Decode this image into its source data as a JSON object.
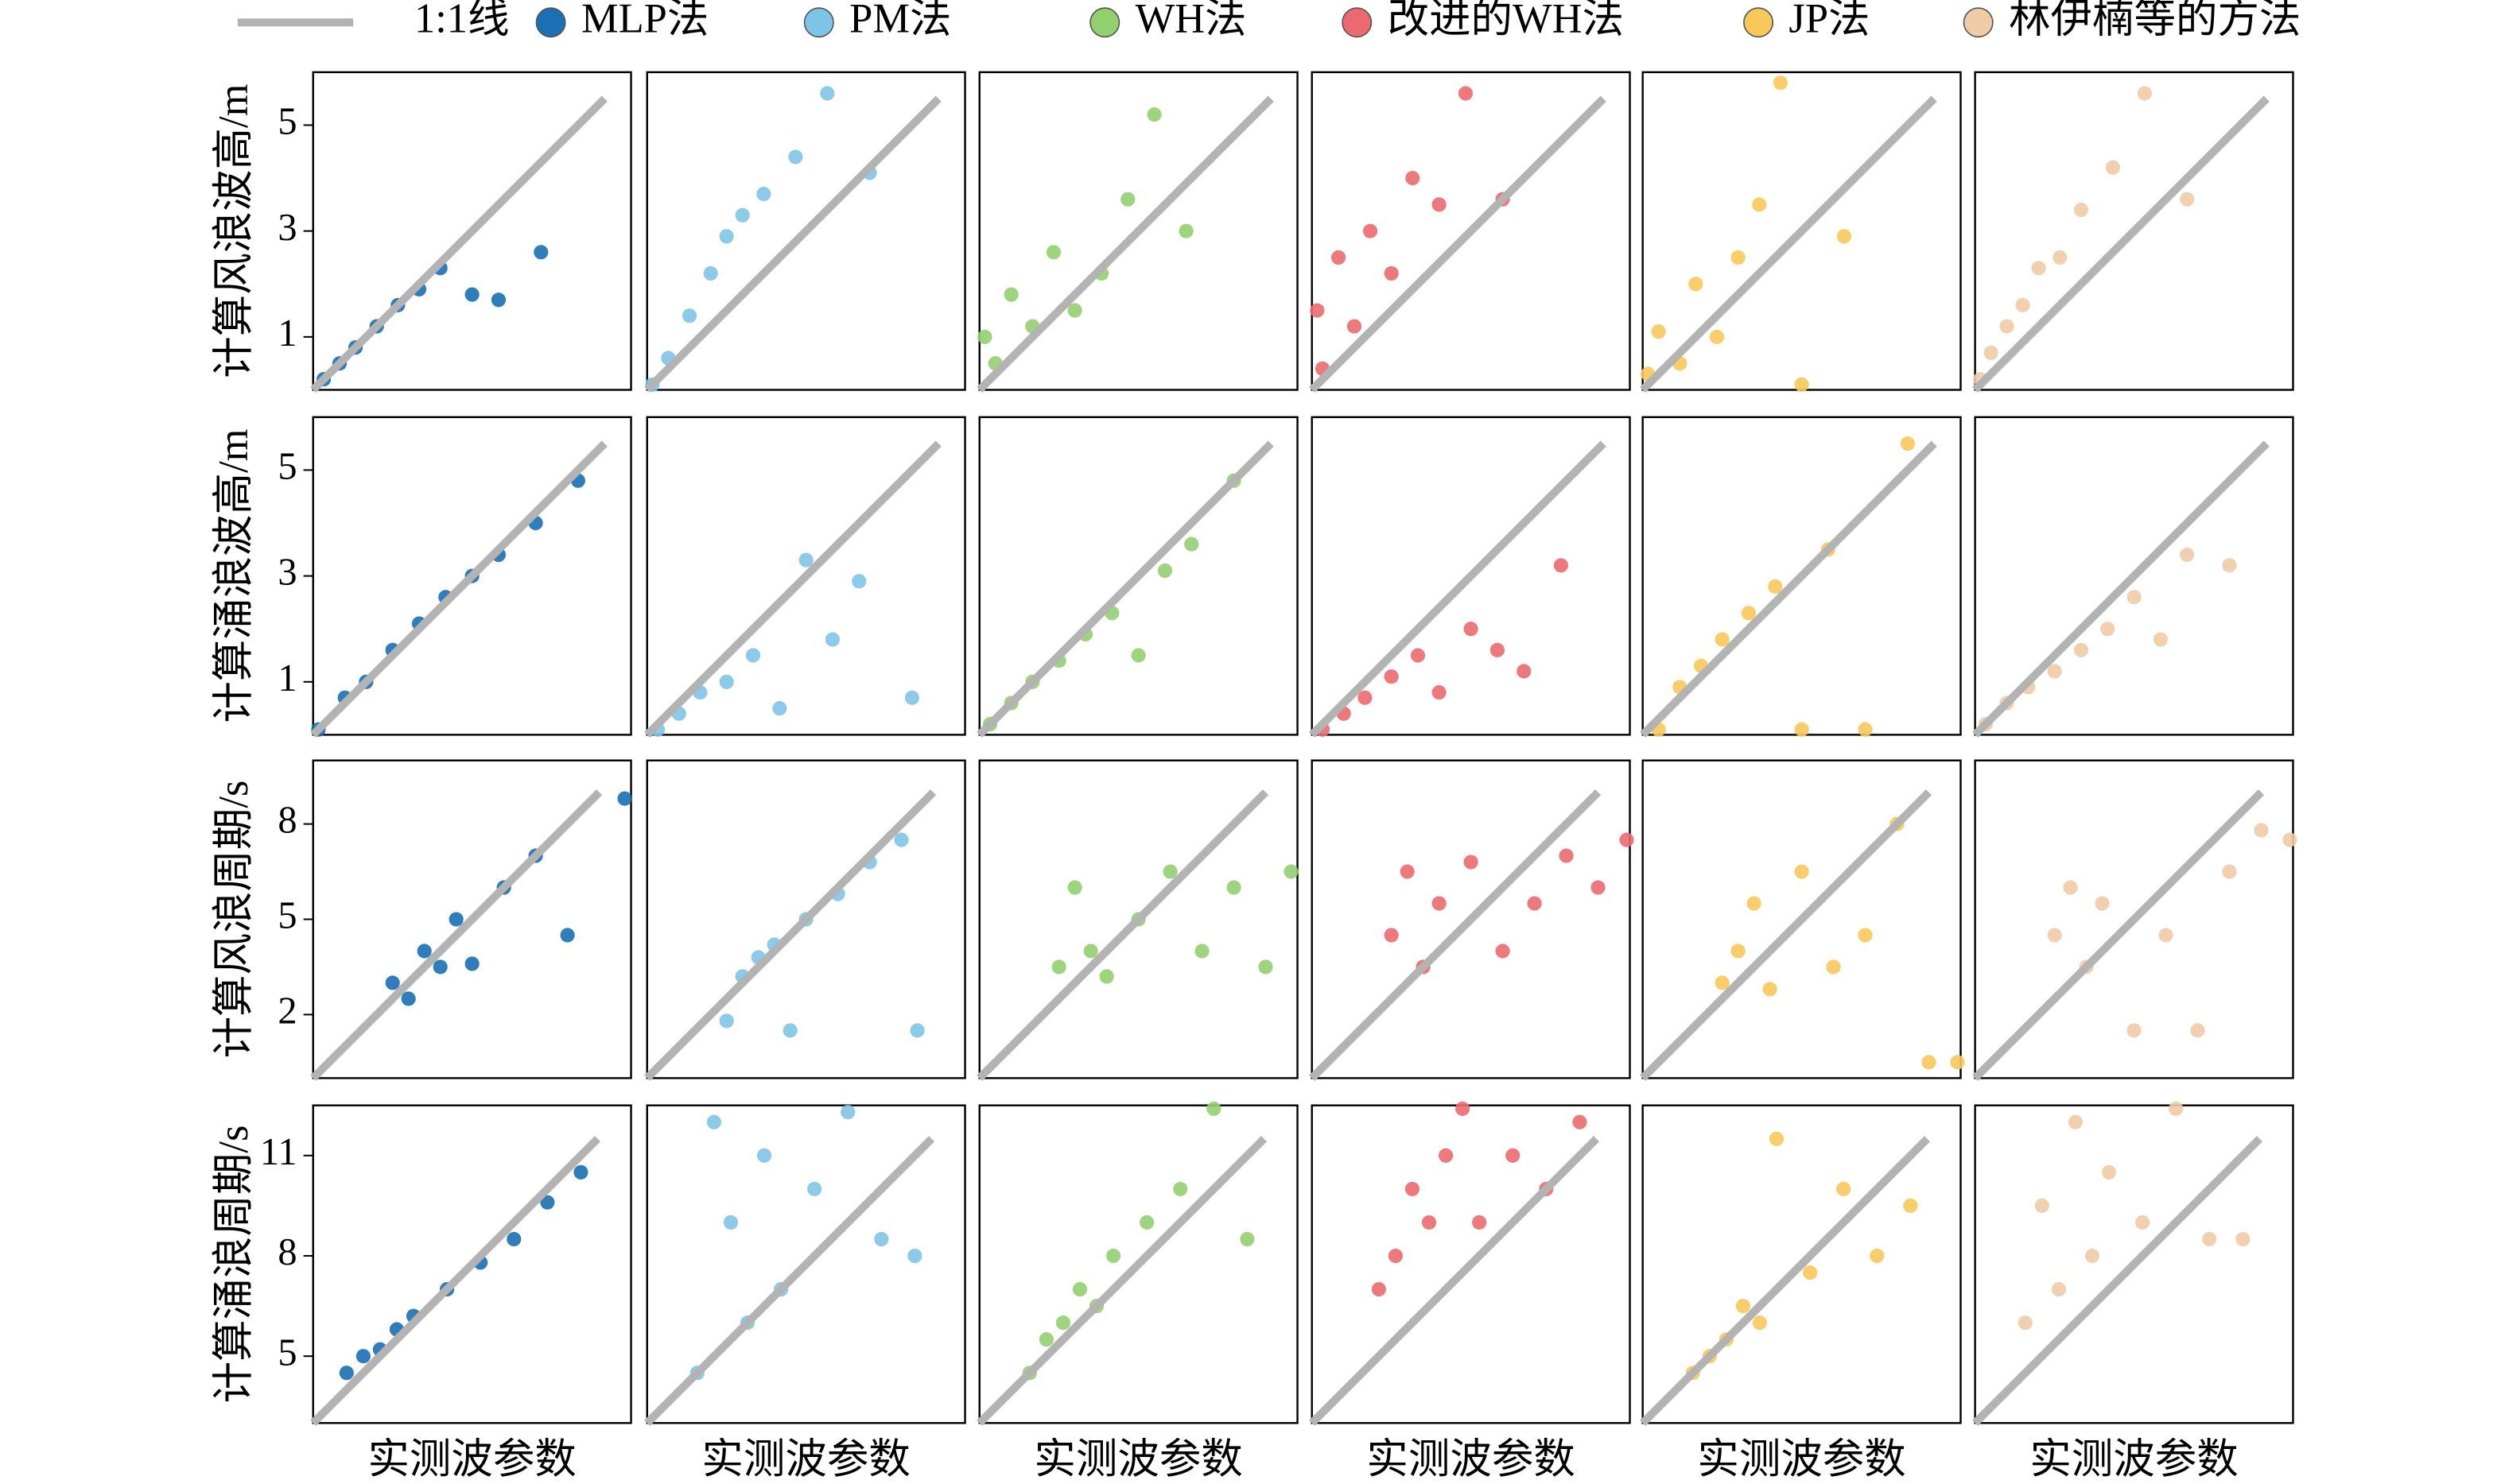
{
  "chart_data": [
    {
      "type": "scatter",
      "ylabel": "计算风浪波高/m",
      "xlim": [
        0,
        6
      ],
      "ylim": [
        0,
        6
      ],
      "yticks": [
        1,
        3,
        5
      ],
      "reference_line": {
        "name": "1:1线",
        "color": "#b3b3b3",
        "range": [
          0,
          5.5
        ]
      },
      "series": [
        {
          "name": "MLP法",
          "color": "#1a6fb5",
          "x": [
            0.2,
            0.5,
            0.8,
            1.2,
            1.6,
            2.0,
            2.4,
            3.0,
            3.5,
            4.3
          ],
          "y": [
            0.2,
            0.5,
            0.8,
            1.2,
            1.6,
            1.9,
            2.3,
            1.8,
            1.7,
            2.6
          ]
        },
        {
          "name": "PM法",
          "color": "#7ec4e6",
          "x": [
            0.1,
            0.4,
            0.8,
            1.2,
            1.5,
            1.8,
            2.2,
            2.8,
            3.4,
            4.2
          ],
          "y": [
            0.1,
            0.6,
            1.4,
            2.2,
            2.9,
            3.3,
            3.7,
            4.4,
            5.6,
            4.1
          ]
        },
        {
          "name": "WH法",
          "color": "#92cf6f",
          "x": [
            0.1,
            0.3,
            0.6,
            1.0,
            1.4,
            1.8,
            2.3,
            2.8,
            3.3,
            3.9
          ],
          "y": [
            1.0,
            0.5,
            1.8,
            1.2,
            2.6,
            1.5,
            2.2,
            3.6,
            5.2,
            3.0
          ]
        },
        {
          "name": "改进的WH法",
          "color": "#ec6a6f",
          "x": [
            0.1,
            0.2,
            0.5,
            0.8,
            1.1,
            1.5,
            1.9,
            2.4,
            2.9,
            3.6
          ],
          "y": [
            1.5,
            0.4,
            2.5,
            1.2,
            3.0,
            2.2,
            4.0,
            3.5,
            5.6,
            3.6
          ]
        },
        {
          "name": "JP法",
          "color": "#f7c85a",
          "x": [
            0.1,
            0.3,
            0.7,
            1.0,
            1.4,
            1.8,
            2.2,
            2.6,
            3.0,
            3.8
          ],
          "y": [
            0.3,
            1.1,
            0.5,
            2.0,
            1.0,
            2.5,
            3.5,
            5.8,
            0.1,
            2.9
          ]
        },
        {
          "name": "林伊楠等的方法",
          "color": "#efcba6",
          "x": [
            0.1,
            0.3,
            0.6,
            0.9,
            1.2,
            1.6,
            2.0,
            2.6,
            3.2,
            4.0
          ],
          "y": [
            0.2,
            0.7,
            1.2,
            1.6,
            2.3,
            2.5,
            3.4,
            4.2,
            5.6,
            3.6
          ]
        }
      ]
    },
    {
      "type": "scatter",
      "ylabel": "计算涌浪波高/m",
      "xlim": [
        0,
        6
      ],
      "ylim": [
        0,
        6
      ],
      "yticks": [
        1,
        3,
        5
      ],
      "reference_line": {
        "color": "#b3b3b3",
        "range": [
          0,
          5.5
        ]
      },
      "series": [
        {
          "color": "#1a6fb5",
          "x": [
            0.1,
            0.6,
            1.0,
            1.5,
            2.0,
            2.5,
            3.0,
            3.5,
            4.2,
            5.0
          ],
          "y": [
            0.1,
            0.7,
            1.0,
            1.6,
            2.1,
            2.6,
            3.0,
            3.4,
            4.0,
            4.8
          ]
        },
        {
          "color": "#7ec4e6",
          "x": [
            0.2,
            0.6,
            1.0,
            1.5,
            2.0,
            2.5,
            3.0,
            3.5,
            4.0,
            5.0
          ],
          "y": [
            0.1,
            0.4,
            0.8,
            1.0,
            1.5,
            0.5,
            3.3,
            1.8,
            2.9,
            0.7
          ]
        },
        {
          "color": "#92cf6f",
          "x": [
            0.2,
            0.6,
            1.0,
            1.5,
            2.0,
            2.5,
            3.0,
            3.5,
            4.0,
            4.8
          ],
          "y": [
            0.2,
            0.6,
            1.0,
            1.4,
            1.9,
            2.3,
            1.5,
            3.1,
            3.6,
            4.8
          ]
        },
        {
          "color": "#ec6a6f",
          "x": [
            0.2,
            0.6,
            1.0,
            1.5,
            2.0,
            2.4,
            3.0,
            3.5,
            4.0,
            4.7
          ],
          "y": [
            0.1,
            0.4,
            0.7,
            1.1,
            1.5,
            0.8,
            2.0,
            1.6,
            1.2,
            3.2
          ]
        },
        {
          "color": "#f7c85a",
          "x": [
            0.3,
            0.7,
            1.1,
            1.5,
            2.0,
            2.5,
            3.0,
            3.5,
            4.2,
            5.0
          ],
          "y": [
            0.1,
            0.9,
            1.3,
            1.8,
            2.3,
            2.8,
            0.1,
            3.5,
            0.1,
            5.5
          ]
        },
        {
          "color": "#efcba6",
          "x": [
            0.2,
            0.6,
            1.0,
            1.5,
            2.0,
            2.5,
            3.0,
            3.5,
            4.0,
            4.8
          ],
          "y": [
            0.2,
            0.6,
            0.9,
            1.2,
            1.6,
            2.0,
            2.6,
            1.8,
            3.4,
            3.2
          ]
        }
      ]
    },
    {
      "type": "scatter",
      "ylabel": "计算风浪周期/s",
      "xlim": [
        0,
        10
      ],
      "ylim": [
        0,
        10
      ],
      "yticks": [
        2,
        5,
        8
      ],
      "reference_line": {
        "color": "#b3b3b3",
        "range": [
          0,
          9
        ]
      },
      "series": [
        {
          "color": "#1a6fb5",
          "x": [
            2.5,
            3.0,
            3.5,
            4.0,
            4.5,
            5.0,
            6.0,
            7.0,
            8.0,
            9.8
          ],
          "y": [
            3.0,
            2.5,
            4.0,
            3.5,
            5.0,
            3.6,
            6.0,
            7.0,
            4.5,
            8.8
          ]
        },
        {
          "color": "#7ec4e6",
          "x": [
            2.5,
            3.0,
            3.5,
            4.0,
            5.0,
            6.0,
            7.0,
            8.0,
            4.5,
            8.5
          ],
          "y": [
            1.8,
            3.2,
            3.8,
            4.2,
            5.0,
            5.8,
            6.8,
            7.5,
            1.5,
            1.5
          ]
        },
        {
          "color": "#92cf6f",
          "x": [
            2.5,
            3.0,
            3.5,
            4.0,
            5.0,
            6.0,
            7.0,
            8.0,
            9.0,
            9.8
          ],
          "y": [
            3.5,
            6.0,
            4.0,
            3.2,
            5.0,
            6.5,
            4.0,
            6.0,
            3.5,
            6.5
          ]
        },
        {
          "color": "#ec6a6f",
          "x": [
            2.5,
            3.0,
            3.5,
            4.0,
            5.0,
            6.0,
            7.0,
            8.0,
            9.0,
            9.9
          ],
          "y": [
            4.5,
            6.5,
            3.5,
            5.5,
            6.8,
            4.0,
            5.5,
            7.0,
            6.0,
            7.5
          ]
        },
        {
          "color": "#f7c85a",
          "x": [
            2.5,
            3.0,
            3.5,
            4.0,
            5.0,
            6.0,
            7.0,
            8.0,
            9.0,
            9.9
          ],
          "y": [
            3.0,
            4.0,
            5.5,
            2.8,
            6.5,
            3.5,
            4.5,
            8.0,
            0.5,
            0.5
          ]
        },
        {
          "color": "#efcba6",
          "x": [
            2.5,
            3.0,
            3.5,
            4.0,
            5.0,
            6.0,
            7.0,
            8.0,
            9.0,
            9.9
          ],
          "y": [
            4.5,
            6.0,
            3.5,
            5.5,
            1.5,
            4.5,
            1.5,
            6.5,
            7.8,
            7.5
          ]
        }
      ]
    },
    {
      "type": "scatter",
      "ylabel": "计算涌浪周期/s",
      "xlabel": "实测波参数",
      "xlim": [
        3,
        12.5
      ],
      "ylim": [
        3,
        12.5
      ],
      "yticks": [
        5,
        8,
        11
      ],
      "reference_line": {
        "color": "#b3b3b3",
        "range": [
          3,
          11.5
        ]
      },
      "series": [
        {
          "color": "#1a6fb5",
          "x": [
            4,
            4.5,
            5,
            5.5,
            6,
            7,
            8,
            9,
            10,
            11
          ],
          "y": [
            4.5,
            5,
            5.2,
            5.8,
            6.2,
            7,
            7.8,
            8.5,
            9.6,
            10.5
          ]
        },
        {
          "color": "#7ec4e6",
          "x": [
            4.5,
            5,
            5.5,
            6,
            6.5,
            7,
            8,
            9,
            10,
            11
          ],
          "y": [
            4.5,
            12,
            9,
            6,
            11,
            7,
            10,
            12.3,
            8.5,
            8
          ]
        },
        {
          "color": "#92cf6f",
          "x": [
            4.5,
            5,
            5.5,
            6,
            6.5,
            7,
            8,
            9,
            10,
            11
          ],
          "y": [
            4.5,
            5.5,
            6,
            7,
            6.5,
            8,
            9,
            10,
            12.4,
            8.5
          ]
        },
        {
          "color": "#ec6a6f",
          "x": [
            5,
            5.5,
            6,
            6.5,
            7,
            7.5,
            8,
            9,
            10,
            11
          ],
          "y": [
            7,
            8,
            10,
            9,
            11,
            12.4,
            9,
            11,
            10,
            12
          ]
        },
        {
          "color": "#f7c85a",
          "x": [
            4.5,
            5,
            5.5,
            6,
            6.5,
            7,
            8,
            9,
            10,
            11
          ],
          "y": [
            4.5,
            5,
            5.5,
            6.5,
            6,
            11.5,
            7.5,
            10,
            8,
            9.5
          ]
        },
        {
          "color": "#efcba6",
          "x": [
            4.5,
            5,
            5.5,
            6,
            6.5,
            7,
            8,
            9,
            10,
            11
          ],
          "y": [
            6,
            9.5,
            7,
            12,
            8,
            10.5,
            9,
            12.4,
            8.5,
            8.5
          ]
        }
      ]
    }
  ]
}
